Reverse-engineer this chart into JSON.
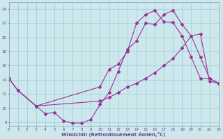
{
  "xlabel": "Windchill (Refroidissement éolien,°C)",
  "background_color": "#cce8ec",
  "grid_color": "#99ccd4",
  "line_color": "#993399",
  "xlim": [
    0,
    23
  ],
  "ylim": [
    7.5,
    25
  ],
  "yticks": [
    8,
    10,
    12,
    14,
    16,
    18,
    20,
    22,
    24
  ],
  "xticks": [
    0,
    1,
    2,
    3,
    4,
    5,
    6,
    7,
    8,
    9,
    10,
    11,
    12,
    13,
    14,
    15,
    16,
    17,
    18,
    19,
    20,
    21,
    22,
    23
  ],
  "line1_x": [
    0,
    1,
    3,
    4,
    5,
    6,
    7,
    8,
    9,
    10,
    11,
    12,
    13,
    14,
    15,
    16,
    17,
    18,
    19,
    20,
    21,
    22,
    23
  ],
  "line1_y": [
    14.2,
    12.5,
    10.3,
    9.2,
    9.4,
    8.2,
    7.9,
    7.9,
    8.4,
    10.5,
    12.2,
    15.2,
    18.3,
    19.5,
    22.0,
    21.8,
    23.2,
    23.8,
    21.8,
    20.2,
    17.2,
    14.2,
    13.5
  ],
  "line2_x": [
    0,
    1,
    3,
    10,
    11,
    12,
    13,
    14,
    15,
    16,
    17,
    18,
    19,
    20,
    21,
    22,
    23
  ],
  "line2_y": [
    14.2,
    12.5,
    10.3,
    13.0,
    15.5,
    16.2,
    18.0,
    22.0,
    23.2,
    23.8,
    22.2,
    22.1,
    20.2,
    17.2,
    14.2,
    14.2,
    13.5
  ],
  "line3_x": [
    0,
    1,
    3,
    10,
    11,
    12,
    13,
    14,
    15,
    16,
    17,
    18,
    19,
    20,
    21,
    22,
    23
  ],
  "line3_y": [
    14.2,
    12.5,
    10.3,
    11.0,
    11.5,
    12.2,
    13.0,
    13.5,
    14.2,
    15.0,
    16.0,
    17.0,
    18.5,
    20.2,
    20.5,
    13.8,
    13.5
  ]
}
